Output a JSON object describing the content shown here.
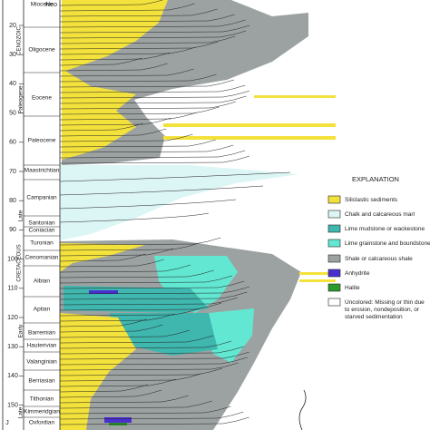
{
  "age_ticks": [
    20,
    30,
    40,
    50,
    60,
    70,
    80,
    90,
    100,
    110,
    120,
    130,
    140,
    150
  ],
  "eras": [
    "CENOZOIC"
  ],
  "periods": [
    "Neo",
    "Paleogene",
    "CRETACEOUS",
    "J"
  ],
  "subperiods": [
    "Late",
    "Early",
    "Late"
  ],
  "stages": [
    "Miocene",
    "Oligocene",
    "Eocene",
    "Paleocene",
    "Maastrichtian",
    "Campanian",
    "Santonian",
    "Coniacian",
    "Turonian",
    "Cenomanian",
    "Albian",
    "Aptian",
    "Barremian",
    "Hauterivian",
    "Valanginian",
    "Berriasian",
    "Tithonian",
    "Kimmeridgian",
    "Oxfordian"
  ],
  "legend": {
    "title": "EXPLANATION",
    "items": [
      {
        "label": "Siliclastic sediments",
        "color": "#f4e23c"
      },
      {
        "label": "Chalk and calcareous marl",
        "color": "#dcf5f5"
      },
      {
        "label": "Lime mudstone or wackestone",
        "color": "#3fb6ae"
      },
      {
        "label": "Lime grainstone and boundstone",
        "color": "#62e8d2"
      },
      {
        "label": "Shale or calcareous shale",
        "color": "#9ca2a2"
      },
      {
        "label": "Anhydrite",
        "color": "#4a2fd0"
      },
      {
        "label": "Halite",
        "color": "#2a9a2a"
      },
      {
        "label": "Uncolored: Missing or thin due to erosion, nondeposition, or starved sedimentation",
        "color": "#ffffff"
      }
    ]
  }
}
